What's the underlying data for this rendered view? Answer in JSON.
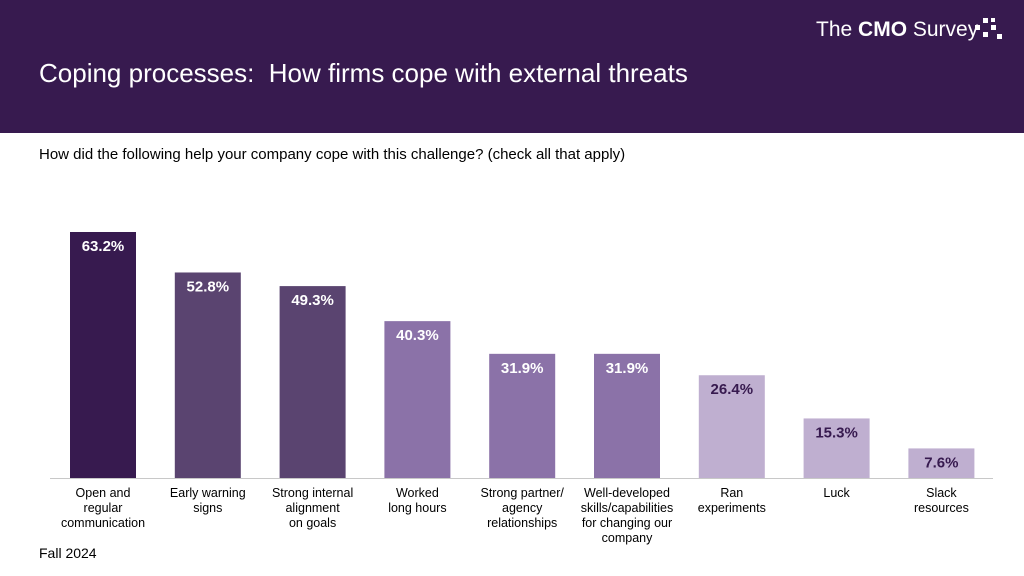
{
  "header": {
    "title": "Coping processes:  How firms cope with external threats",
    "logo_prefix": "The ",
    "logo_bold": "CMO",
    "logo_suffix": " Survey"
  },
  "question": "How did the following help your company cope with this challenge? (check all that apply)",
  "footer": "Fall 2024",
  "chart_data": {
    "type": "bar",
    "categories": [
      [
        "Open and",
        "regular",
        "communication"
      ],
      [
        "Early warning",
        "signs"
      ],
      [
        "Strong internal",
        "alignment",
        "on goals"
      ],
      [
        "Worked",
        "long hours"
      ],
      [
        "Strong partner/",
        "agency",
        "relationships"
      ],
      [
        "Well-developed",
        "skills/capabilities",
        "for changing our",
        "company"
      ],
      [
        "Ran",
        "experiments"
      ],
      [
        "Luck"
      ],
      [
        "Slack",
        "resources"
      ]
    ],
    "values": [
      63.2,
      52.8,
      49.3,
      40.3,
      31.9,
      31.9,
      26.4,
      15.3,
      7.6
    ],
    "value_labels": [
      "63.2%",
      "52.8%",
      "49.3%",
      "40.3%",
      "31.9%",
      "31.9%",
      "26.4%",
      "15.3%",
      "7.6%"
    ],
    "colors": [
      "#371a4f",
      "#5a4470",
      "#5a4470",
      "#8b72a8",
      "#8b72a8",
      "#8b72a8",
      "#bfafd0",
      "#bfafd0",
      "#bfafd0"
    ],
    "label_colors": [
      "#ffffff",
      "#ffffff",
      "#ffffff",
      "#ffffff",
      "#ffffff",
      "#ffffff",
      "#371a4f",
      "#371a4f",
      "#371a4f"
    ],
    "ylim": [
      0,
      63.2
    ],
    "grid": false,
    "legend": "none"
  }
}
